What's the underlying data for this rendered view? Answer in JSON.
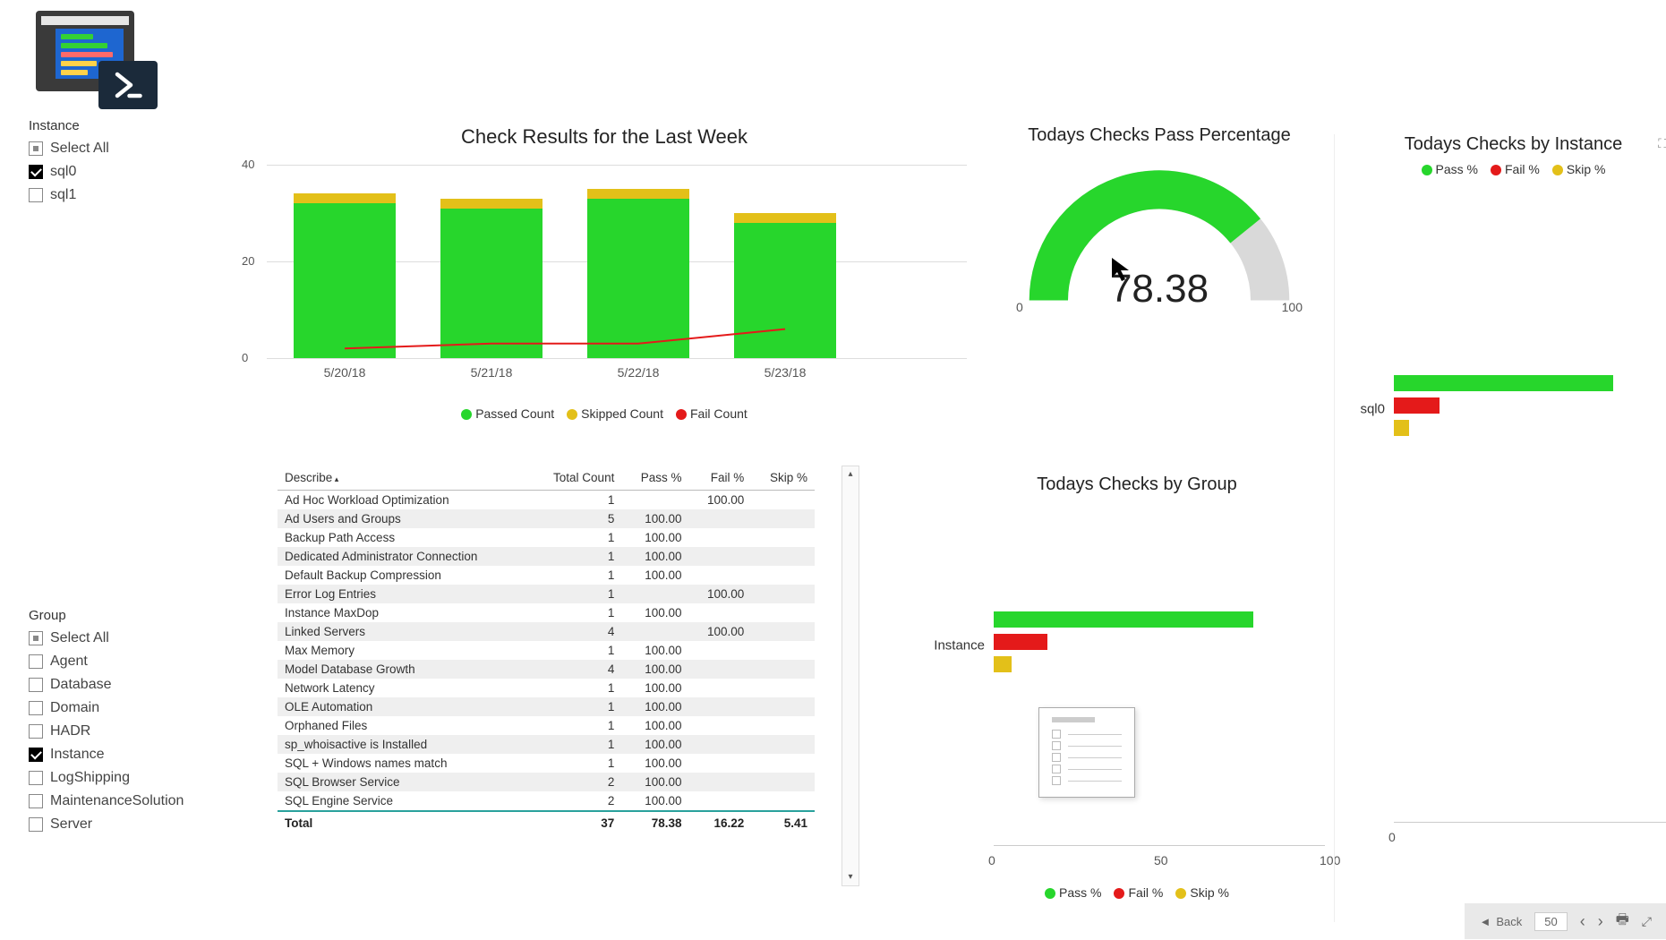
{
  "colors": {
    "pass": "#27d62c",
    "skip": "#e3c019",
    "fail": "#e41a1a",
    "grey": "#d9d9d9",
    "grid": "#dddddd",
    "text": "#333333"
  },
  "sidebar": {
    "instance_label": "Instance",
    "instance_items": [
      {
        "label": "Select All",
        "state": "all"
      },
      {
        "label": "sql0",
        "state": "checked"
      },
      {
        "label": "sql1",
        "state": "unchecked"
      }
    ],
    "group_label": "Group",
    "group_items": [
      {
        "label": "Select All",
        "state": "all"
      },
      {
        "label": "Agent",
        "state": "unchecked"
      },
      {
        "label": "Database",
        "state": "unchecked"
      },
      {
        "label": "Domain",
        "state": "unchecked"
      },
      {
        "label": "HADR",
        "state": "unchecked"
      },
      {
        "label": "Instance",
        "state": "checked"
      },
      {
        "label": "LogShipping",
        "state": "unchecked"
      },
      {
        "label": "MaintenanceSolution",
        "state": "unchecked"
      },
      {
        "label": "Server",
        "state": "unchecked"
      }
    ]
  },
  "bar_chart": {
    "title": "Check Results for the Last Week",
    "ymax": 40,
    "yticks": [
      0,
      20,
      40
    ],
    "categories": [
      "5/20/18",
      "5/21/18",
      "5/22/18",
      "5/23/18"
    ],
    "series": [
      {
        "name": "Passed Count",
        "color": "#27d62c",
        "type": "bar",
        "values": [
          32,
          31,
          33,
          28
        ]
      },
      {
        "name": "Skipped Count",
        "color": "#e3c019",
        "type": "bar",
        "values": [
          2,
          2,
          2,
          2
        ]
      },
      {
        "name": "Fail Count",
        "color": "#e41a1a",
        "type": "line",
        "values": [
          2,
          3,
          3,
          6
        ]
      }
    ],
    "legend": [
      "Passed Count",
      "Skipped Count",
      "Fail Count"
    ]
  },
  "gauge": {
    "title": "Todays Checks Pass Percentage",
    "value": 78.38,
    "value_label": "78.38",
    "min": 0,
    "max": 100,
    "min_label": "0",
    "max_label": "100",
    "fill_color": "#27d62c",
    "track_color": "#d9d9d9"
  },
  "table": {
    "columns": [
      "Describe",
      "Total Count",
      "Pass %",
      "Fail %",
      "Skip %"
    ],
    "rows": [
      [
        "Ad Hoc Workload Optimization",
        "1",
        "",
        "100.00",
        ""
      ],
      [
        "Ad Users and Groups",
        "5",
        "100.00",
        "",
        ""
      ],
      [
        "Backup Path Access",
        "1",
        "100.00",
        "",
        ""
      ],
      [
        "Dedicated Administrator Connection",
        "1",
        "100.00",
        "",
        ""
      ],
      [
        "Default Backup Compression",
        "1",
        "100.00",
        "",
        ""
      ],
      [
        "Error Log Entries",
        "1",
        "",
        "100.00",
        ""
      ],
      [
        "Instance MaxDop",
        "1",
        "100.00",
        "",
        ""
      ],
      [
        "Linked Servers",
        "4",
        "",
        "100.00",
        ""
      ],
      [
        "Max Memory",
        "1",
        "100.00",
        "",
        ""
      ],
      [
        "Model Database Growth",
        "4",
        "100.00",
        "",
        ""
      ],
      [
        "Network Latency",
        "1",
        "100.00",
        "",
        ""
      ],
      [
        "OLE Automation",
        "1",
        "100.00",
        "",
        ""
      ],
      [
        "Orphaned Files",
        "1",
        "100.00",
        "",
        ""
      ],
      [
        "sp_whoisactive is Installed",
        "1",
        "100.00",
        "",
        ""
      ],
      [
        "SQL + Windows names match",
        "1",
        "100.00",
        "",
        ""
      ],
      [
        "SQL Browser Service",
        "2",
        "100.00",
        "",
        ""
      ],
      [
        "SQL Engine Service",
        "2",
        "100.00",
        "",
        ""
      ]
    ],
    "total": [
      "Total",
      "37",
      "78.38",
      "16.22",
      "5.41"
    ]
  },
  "group_chart": {
    "title": "Todays Checks by Group",
    "xmax": 100,
    "xticks": [
      "0",
      "50",
      "100"
    ],
    "category": "Instance",
    "bars": [
      {
        "metric": "Pass %",
        "value": 78.38,
        "color": "#27d62c"
      },
      {
        "metric": "Fail %",
        "value": 16.22,
        "color": "#e41a1a"
      },
      {
        "metric": "Skip %",
        "value": 5.41,
        "color": "#e3c019"
      }
    ],
    "legend": [
      "Pass %",
      "Fail %",
      "Skip %"
    ]
  },
  "instance_chart": {
    "title": "Todays Checks by Instance",
    "xmax": 100,
    "xticks": [
      "0",
      "50"
    ],
    "category": "sql0",
    "bars": [
      {
        "metric": "Pass %",
        "value": 78.38,
        "color": "#27d62c"
      },
      {
        "metric": "Fail %",
        "value": 16.22,
        "color": "#e41a1a"
      },
      {
        "metric": "Skip %",
        "value": 5.41,
        "color": "#e3c019"
      }
    ],
    "legend": [
      "Pass %",
      "Fail %",
      "Skip %"
    ]
  },
  "footer": {
    "back": "Back",
    "page": "50"
  }
}
